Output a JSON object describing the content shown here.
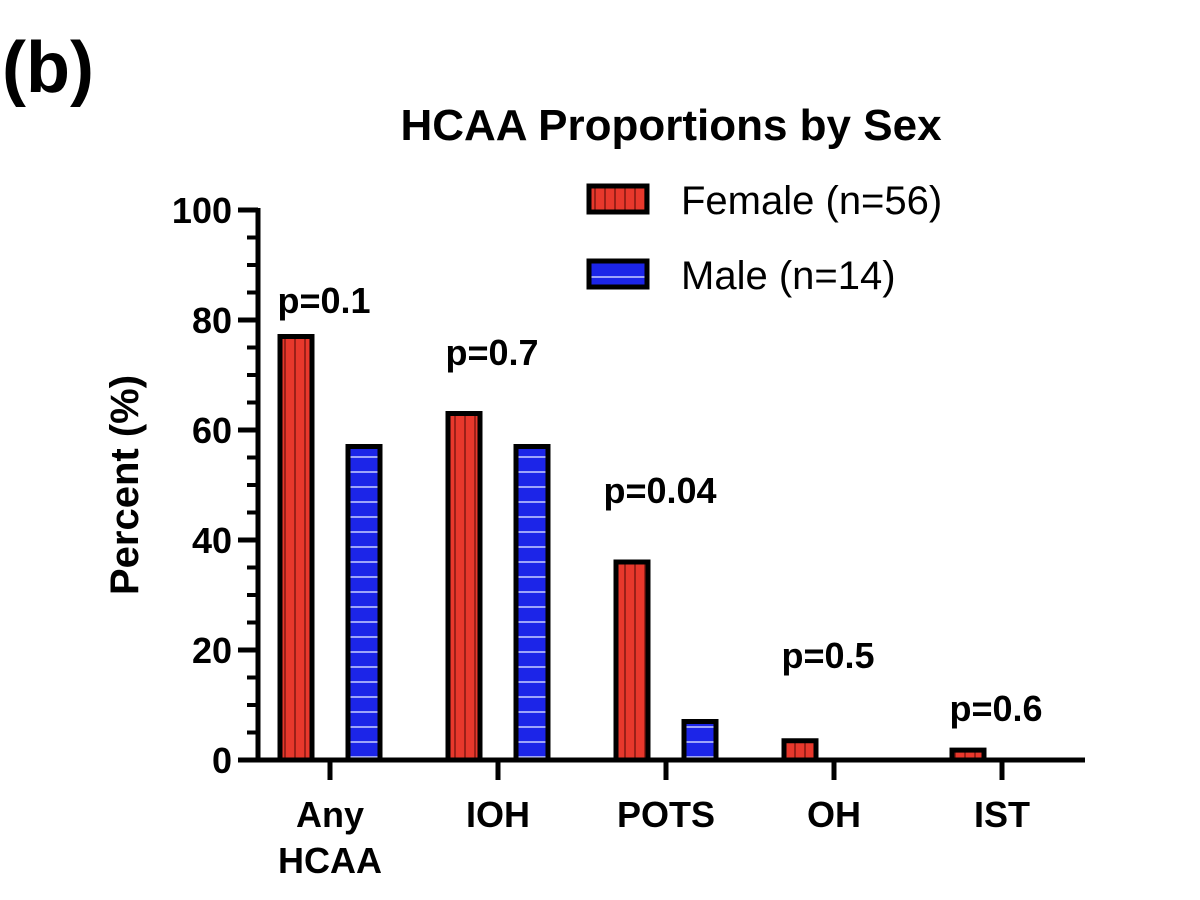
{
  "panel_label": "(b)",
  "chart_data": {
    "type": "bar",
    "title": "HCAA Proportions by Sex",
    "xlabel": "",
    "ylabel": "Percent (%)",
    "ylim": [
      0,
      100
    ],
    "yticks": [
      0,
      20,
      40,
      60,
      80,
      100
    ],
    "grid": false,
    "legend_position": "top-right",
    "categories": [
      [
        "Any",
        "HCAA"
      ],
      [
        "IOH"
      ],
      [
        "POTS"
      ],
      [
        "OH"
      ],
      [
        "IST"
      ]
    ],
    "series": [
      {
        "name": "Female (n=56)",
        "values": [
          77,
          63,
          36,
          3.5,
          1.8
        ],
        "color": "#e8382c",
        "pattern": "vertical-lines"
      },
      {
        "name": "Male (n=14)",
        "values": [
          57,
          57,
          7,
          0,
          0
        ],
        "color": "#1c25e8",
        "pattern": "horizontal-lines"
      }
    ],
    "annotations": [
      "p=0.1",
      "p=0.7",
      "p=0.04",
      "p=0.5",
      "p=0.6"
    ]
  }
}
